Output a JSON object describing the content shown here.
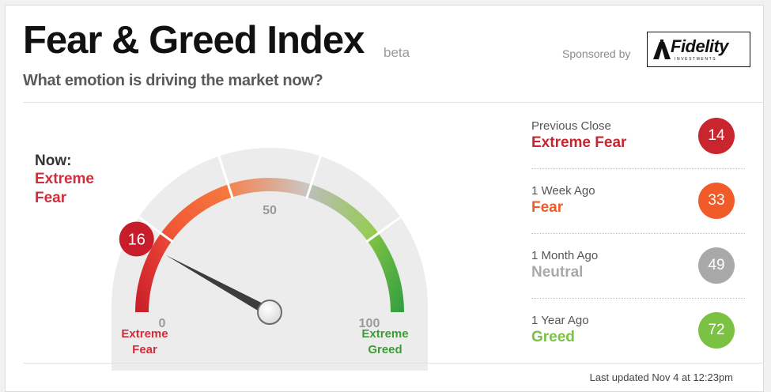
{
  "header": {
    "title": "Fear & Greed Index",
    "beta": "beta",
    "subtitle": "What emotion is driving the market now?",
    "sponsored": "Sponsored by",
    "logo_text": "Fidelity",
    "logo_sub": "INVESTMENTS"
  },
  "now": {
    "label": "Now:",
    "value": "Extreme Fear",
    "score": "16",
    "score_value": 16
  },
  "gauge": {
    "min": 0,
    "max": 100,
    "min_label": "0",
    "mid_label": "50",
    "max_label": "100",
    "left_caption": "Extreme Fear",
    "right_caption": "Extreme Greed",
    "colors": {
      "extreme_fear": "#d12d3b",
      "fear": "#f26a3a",
      "neutral": "#b9b9b9",
      "greed": "#8ac644",
      "extreme_greed": "#3fa843"
    }
  },
  "history": [
    {
      "label": "Previous Close",
      "value": "Extreme Fear",
      "score": "14",
      "color": "#c8252f"
    },
    {
      "label": "1 Week Ago",
      "value": "Fear",
      "score": "33",
      "color": "#f15a29"
    },
    {
      "label": "1 Month Ago",
      "value": "Neutral",
      "score": "49",
      "color": "#a9a9a9"
    },
    {
      "label": "1 Year Ago",
      "value": "Greed",
      "score": "72",
      "color": "#7bc142"
    }
  ],
  "footer": {
    "updated": "Last updated Nov 4 at 12:23pm"
  }
}
